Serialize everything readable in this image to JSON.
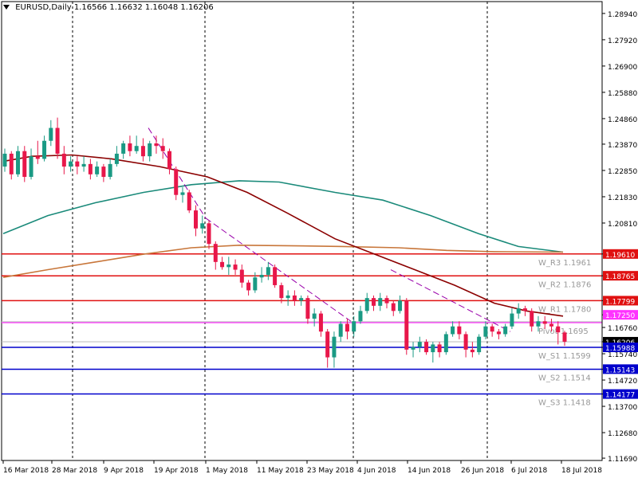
{
  "header": {
    "symbol": "EURUSD,Daily",
    "ohlc": "1.16566 1.16632 1.16048 1.16206"
  },
  "chart_data": {
    "type": "candlestick",
    "title": "EURUSD,Daily",
    "yaxis_ticks": [
      "1.28940",
      "1.27920",
      "1.26900",
      "1.25880",
      "1.24860",
      "1.23870",
      "1.22850",
      "1.21830",
      "1.20810",
      "1.19610",
      "1.18765",
      "1.17799",
      "1.17250",
      "1.16760",
      "1.16206",
      "1.15988",
      "1.15740",
      "1.15143",
      "1.14720",
      "1.14177",
      "1.13700",
      "1.12680",
      "1.11690"
    ],
    "xaxis_ticks": [
      "16 Mar 2018",
      "28 Mar 2018",
      "9 Apr 2018",
      "19 Apr 2018",
      "1 May 2018",
      "11 May 2018",
      "23 May 2018",
      "4 Jun 2018",
      "14 Jun 2018",
      "26 Jun 2018",
      "6 Jul 2018",
      "18 Jul 2018"
    ],
    "price_labels": [
      {
        "value": "1.19610",
        "color": "#e01010"
      },
      {
        "value": "1.18765",
        "color": "#e01010"
      },
      {
        "value": "1.17799",
        "color": "#e01010"
      },
      {
        "value": "1.17250",
        "color": "#ff33ff"
      },
      {
        "value": "1.16206",
        "color": "#000000"
      },
      {
        "value": "1.15988",
        "color": "#0000cc"
      },
      {
        "value": "1.15143",
        "color": "#0000cc"
      },
      {
        "value": "1.14177",
        "color": "#0000cc"
      }
    ],
    "levels": [
      {
        "name": "W_R3",
        "value": 1.1961,
        "text": "W_R3 1.1961",
        "color": "#e01010"
      },
      {
        "name": "W_R2",
        "value": 1.1876,
        "text": "W_R2 1.1876",
        "color": "#e01010"
      },
      {
        "name": "W_R1",
        "value": 1.178,
        "text": "W_R1 1.1780",
        "color": "#e01010"
      },
      {
        "name": "Pivot",
        "value": 1.1695,
        "text": "Pivot 1.1695",
        "color": "#ff33ff"
      },
      {
        "name": "W_S1",
        "value": 1.1599,
        "text": "W_S1 1.1599",
        "color": "#0000cc"
      },
      {
        "name": "W_S2",
        "value": 1.1514,
        "text": "W_S2 1.1514",
        "color": "#0000cc"
      },
      {
        "name": "W_S3",
        "value": 1.1418,
        "text": "W_S3 1.1418",
        "color": "#0000cc"
      }
    ],
    "colors": {
      "bull": "#1a9a84",
      "bear": "#e8174a",
      "ma_fast": "#8b0000",
      "ma_slow": "#1a8a7a",
      "ma_long": "#c8763a",
      "trend": "#9900aa"
    },
    "candles": [
      [
        1.23,
        1.237,
        1.228,
        1.235
      ],
      [
        1.235,
        1.236,
        1.225,
        1.227
      ],
      [
        1.227,
        1.238,
        1.226,
        1.236
      ],
      [
        1.236,
        1.238,
        1.224,
        1.226
      ],
      [
        1.226,
        1.237,
        1.225,
        1.234
      ],
      [
        1.234,
        1.24,
        1.231,
        1.233
      ],
      [
        1.233,
        1.242,
        1.232,
        1.24
      ],
      [
        1.24,
        1.248,
        1.238,
        1.245
      ],
      [
        1.245,
        1.249,
        1.233,
        1.235
      ],
      [
        1.235,
        1.238,
        1.227,
        1.23
      ],
      [
        1.23,
        1.234,
        1.228,
        1.232
      ],
      [
        1.232,
        1.234,
        1.227,
        1.23
      ],
      [
        1.23,
        1.234,
        1.228,
        1.231
      ],
      [
        1.231,
        1.233,
        1.225,
        1.227
      ],
      [
        1.227,
        1.232,
        1.226,
        1.23
      ],
      [
        1.23,
        1.231,
        1.224,
        1.226
      ],
      [
        1.226,
        1.233,
        1.225,
        1.231
      ],
      [
        1.231,
        1.238,
        1.23,
        1.235
      ],
      [
        1.235,
        1.24,
        1.233,
        1.239
      ],
      [
        1.239,
        1.242,
        1.234,
        1.236
      ],
      [
        1.236,
        1.242,
        1.235,
        1.238
      ],
      [
        1.238,
        1.241,
        1.232,
        1.234
      ],
      [
        1.234,
        1.24,
        1.232,
        1.239
      ],
      [
        1.239,
        1.242,
        1.235,
        1.238
      ],
      [
        1.238,
        1.241,
        1.233,
        1.236
      ],
      [
        1.236,
        1.237,
        1.227,
        1.229
      ],
      [
        1.229,
        1.23,
        1.217,
        1.219
      ],
      [
        1.219,
        1.222,
        1.216,
        1.22
      ],
      [
        1.22,
        1.221,
        1.212,
        1.213
      ],
      [
        1.213,
        1.215,
        1.203,
        1.206
      ],
      [
        1.206,
        1.211,
        1.204,
        1.208
      ],
      [
        1.208,
        1.209,
        1.198,
        1.2
      ],
      [
        1.2,
        1.201,
        1.19,
        1.193
      ],
      [
        1.193,
        1.195,
        1.19,
        1.191
      ],
      [
        1.191,
        1.195,
        1.188,
        1.192
      ],
      [
        1.192,
        1.194,
        1.188,
        1.19
      ],
      [
        1.19,
        1.192,
        1.183,
        1.185
      ],
      [
        1.185,
        1.186,
        1.18,
        1.182
      ],
      [
        1.182,
        1.189,
        1.181,
        1.187
      ],
      [
        1.187,
        1.191,
        1.185,
        1.188
      ],
      [
        1.188,
        1.193,
        1.186,
        1.191
      ],
      [
        1.191,
        1.192,
        1.183,
        1.184
      ],
      [
        1.184,
        1.185,
        1.177,
        1.179
      ],
      [
        1.179,
        1.182,
        1.176,
        1.18
      ],
      [
        1.18,
        1.182,
        1.176,
        1.178
      ],
      [
        1.178,
        1.18,
        1.176,
        1.179
      ],
      [
        1.179,
        1.18,
        1.169,
        1.171
      ],
      [
        1.171,
        1.175,
        1.168,
        1.173
      ],
      [
        1.173,
        1.174,
        1.164,
        1.166
      ],
      [
        1.166,
        1.167,
        1.152,
        1.156
      ],
      [
        1.156,
        1.166,
        1.152,
        1.164
      ],
      [
        1.164,
        1.17,
        1.162,
        1.169
      ],
      [
        1.169,
        1.171,
        1.163,
        1.166
      ],
      [
        1.166,
        1.172,
        1.164,
        1.17
      ],
      [
        1.17,
        1.176,
        1.169,
        1.174
      ],
      [
        1.174,
        1.181,
        1.173,
        1.179
      ],
      [
        1.179,
        1.18,
        1.174,
        1.176
      ],
      [
        1.176,
        1.181,
        1.174,
        1.179
      ],
      [
        1.179,
        1.18,
        1.175,
        1.177
      ],
      [
        1.177,
        1.178,
        1.172,
        1.174
      ],
      [
        1.174,
        1.18,
        1.173,
        1.178
      ],
      [
        1.178,
        1.179,
        1.157,
        1.159
      ],
      [
        1.159,
        1.162,
        1.156,
        1.16
      ],
      [
        1.16,
        1.164,
        1.158,
        1.162
      ],
      [
        1.162,
        1.163,
        1.157,
        1.158
      ],
      [
        1.158,
        1.162,
        1.154,
        1.161
      ],
      [
        1.161,
        1.162,
        1.156,
        1.158
      ],
      [
        1.158,
        1.166,
        1.157,
        1.165
      ],
      [
        1.165,
        1.17,
        1.164,
        1.168
      ],
      [
        1.168,
        1.17,
        1.163,
        1.165
      ],
      [
        1.165,
        1.166,
        1.156,
        1.159
      ],
      [
        1.159,
        1.162,
        1.156,
        1.158
      ],
      [
        1.158,
        1.165,
        1.157,
        1.164
      ],
      [
        1.164,
        1.17,
        1.163,
        1.168
      ],
      [
        1.168,
        1.169,
        1.164,
        1.166
      ],
      [
        1.166,
        1.167,
        1.163,
        1.165
      ],
      [
        1.165,
        1.169,
        1.164,
        1.168
      ],
      [
        1.168,
        1.175,
        1.167,
        1.173
      ],
      [
        1.173,
        1.177,
        1.171,
        1.175
      ],
      [
        1.175,
        1.176,
        1.172,
        1.174
      ],
      [
        1.174,
        1.175,
        1.166,
        1.168
      ],
      [
        1.168,
        1.172,
        1.166,
        1.17
      ],
      [
        1.17,
        1.172,
        1.167,
        1.169
      ],
      [
        1.169,
        1.171,
        1.166,
        1.168
      ],
      [
        1.168,
        1.17,
        1.161,
        1.1657
      ],
      [
        1.16566,
        1.16632,
        1.16048,
        1.16206
      ]
    ]
  }
}
